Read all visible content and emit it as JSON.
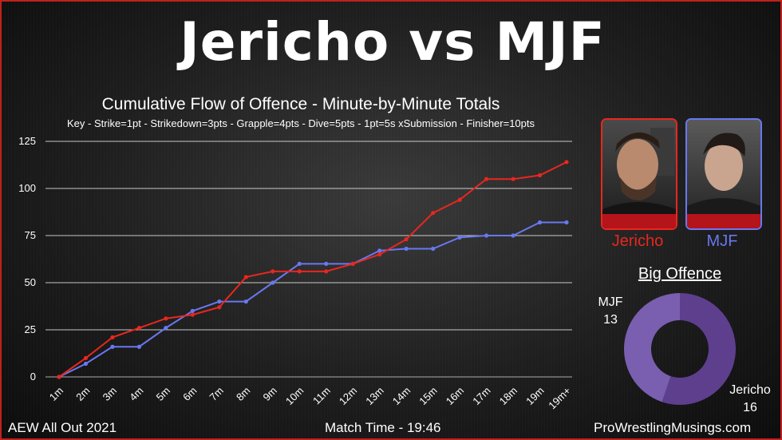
{
  "title": "Jericho vs MJF",
  "chart_title": "Cumulative Flow of Offence - Minute-by-Minute Totals",
  "key_text": "Key - Strike=1pt - Strikedown=3pts - Grapple=4pts - Dive=5pts - 1pt=5s xSubmission - Finisher=10pts",
  "colors": {
    "jericho": "#e8271f",
    "mjf": "#6878f0",
    "donut_jericho": "#5e3f8e",
    "donut_mjf": "#7a5fb0"
  },
  "chart_data": [
    {
      "type": "line",
      "title": "Cumulative Flow of Offence - Minute-by-Minute Totals",
      "x": [
        "1m",
        "2m",
        "3m",
        "4m",
        "5m",
        "6m",
        "7m",
        "8m",
        "9m",
        "10m",
        "11m",
        "12m",
        "13m",
        "14m",
        "15m",
        "16m",
        "17m",
        "18m",
        "19m",
        "19m+"
      ],
      "ylim": [
        0,
        125
      ],
      "yticks": [
        0,
        25,
        50,
        75,
        100,
        125
      ],
      "grid": true,
      "series": [
        {
          "name": "Jericho",
          "color": "#e8271f",
          "values": [
            0,
            10,
            21,
            26,
            31,
            33,
            37,
            53,
            56,
            56,
            56,
            60,
            65,
            73,
            87,
            94,
            105,
            105,
            107,
            114
          ]
        },
        {
          "name": "MJF",
          "color": "#6878f0",
          "values": [
            0,
            7,
            16,
            16,
            26,
            35,
            40,
            40,
            50,
            60,
            60,
            60,
            67,
            68,
            68,
            74,
            75,
            75,
            82,
            82
          ]
        }
      ]
    },
    {
      "type": "pie",
      "title": "Big Offence",
      "slices": [
        {
          "name": "MJF",
          "value": 13,
          "color": "#7a5fb0"
        },
        {
          "name": "Jericho",
          "value": 16,
          "color": "#5e3f8e"
        }
      ]
    }
  ],
  "wrestlers": {
    "jericho": {
      "name": "Jericho",
      "border": "#e8271f"
    },
    "mjf": {
      "name": "MJF",
      "border": "#6878f0"
    }
  },
  "big_offence": {
    "title": "Big Offence",
    "mjf_name": "MJF",
    "mjf_value": "13",
    "jericho_name": "Jericho",
    "jericho_value": "16"
  },
  "footer": {
    "event": "AEW All Out 2021",
    "match_time": "Match Time - 19:46",
    "site": "ProWrestlingMusings.com"
  }
}
